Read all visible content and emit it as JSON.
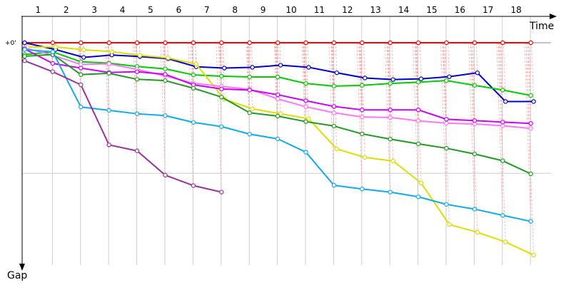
{
  "chart_data": {
    "type": "line",
    "xlabel": "Time",
    "ylabel": "Gap",
    "y_zero_label": "+0'",
    "x_ticks": [
      "1",
      "2",
      "3",
      "4",
      "5",
      "6",
      "7",
      "8",
      "9",
      "10",
      "11",
      "12",
      "13",
      "14",
      "15",
      "16",
      "17",
      "18"
    ],
    "x_range": [
      0.5,
      19.5
    ],
    "y_range": [
      0,
      100
    ],
    "grid": true,
    "y_reference": 50,
    "series": [
      {
        "color": "#ff0000",
        "x": [
          0.5,
          1.5,
          2.5,
          3.5,
          4.5,
          5.5,
          6.5,
          7.5,
          8.5,
          9.5,
          10.5,
          11.5,
          12.5,
          13.5,
          14.5,
          15.5,
          16.5,
          17.5,
          18.5
        ],
        "values": [
          0,
          0,
          0,
          0,
          0,
          0,
          0,
          0,
          0,
          0,
          0,
          0,
          0,
          0,
          0,
          0,
          0,
          0,
          0
        ]
      },
      {
        "color": "#0000cc",
        "x": [
          0.5,
          1.6,
          2.6,
          3.6,
          4.6,
          5.6,
          6.6,
          7.6,
          8.6,
          9.6,
          10.6,
          11.6,
          12.6,
          13.6,
          14.6,
          15.6,
          16.6,
          17.6,
          18.6
        ],
        "values": [
          0,
          2.6,
          5.6,
          4.7,
          5.3,
          6.1,
          9.2,
          9.7,
          9.4,
          8.6,
          9.4,
          11.5,
          13.5,
          14.1,
          13.8,
          13,
          11.5,
          22.5,
          22.5
        ]
      },
      {
        "color": "#00cc00",
        "x": [
          0.5,
          1.5,
          2.5,
          3.5,
          4.5,
          5.5,
          6.5,
          7.5,
          8.5,
          9.5,
          10.5,
          11.5,
          12.5,
          13.5,
          14.5,
          15.5,
          16.5,
          17.5,
          18.5
        ],
        "values": [
          4.5,
          3.5,
          7.3,
          7.8,
          9.1,
          10,
          12.3,
          12.8,
          13.1,
          13.1,
          15.6,
          16.6,
          16.3,
          15.6,
          15.1,
          14.5,
          16.3,
          18.1,
          20.2
        ]
      },
      {
        "color": "#dddd00",
        "x": [
          0.6,
          1.6,
          2.6,
          3.6,
          4.6,
          5.6,
          6.6,
          7.6,
          8.6,
          9.6,
          10.6,
          11.6,
          12.6,
          13.6,
          14.6,
          15.6,
          16.6,
          17.6,
          18.6
        ],
        "values": [
          1.6,
          1.6,
          2.7,
          3.4,
          4.8,
          5.8,
          8.2,
          21.6,
          25.3,
          27.2,
          29.1,
          40.7,
          43.9,
          45.3,
          53.7,
          69.6,
          72.6,
          76.3,
          81.3
        ]
      },
      {
        "color": "#ff77ff",
        "x": [
          0.5,
          1.5,
          2.5,
          3.5,
          4.5,
          5.5,
          6.5,
          7.5,
          8.5,
          9.5,
          10.5,
          11.5,
          12.5,
          13.5,
          14.5,
          15.5,
          16.5,
          17.5,
          18.5
        ],
        "values": [
          2,
          4.8,
          8.3,
          8.1,
          10.2,
          12.7,
          15.5,
          16.7,
          17.8,
          21.5,
          24.5,
          26.8,
          28.4,
          28.6,
          29.9,
          30.8,
          31.1,
          31.8,
          32.8
        ]
      },
      {
        "color": "#cc00ff",
        "x": [
          0.5,
          1.5,
          2.5,
          3.5,
          4.5,
          5.5,
          6.5,
          7.5,
          8.5,
          9.5,
          10.5,
          11.5,
          12.5,
          13.5,
          14.5,
          15.5,
          16.5,
          17.5,
          18.5
        ],
        "values": [
          2.4,
          7.9,
          9.7,
          11.4,
          11.1,
          12.1,
          16.1,
          17.7,
          18.1,
          19.9,
          22.2,
          24.4,
          25.7,
          25.7,
          25.7,
          29.3,
          29.8,
          30.4,
          30.9
        ]
      },
      {
        "color": "#229922",
        "x": [
          0.5,
          1.5,
          2.5,
          3.5,
          4.5,
          5.5,
          6.5,
          7.5,
          8.5,
          9.5,
          10.5,
          11.5,
          12.5,
          13.5,
          14.5,
          15.5,
          16.5,
          17.5,
          18.5
        ],
        "values": [
          5.2,
          4.5,
          12.2,
          11.7,
          14,
          14.5,
          17.4,
          20.8,
          26.8,
          28.1,
          30.2,
          31.9,
          34.9,
          36.9,
          38.7,
          40.4,
          42.6,
          45.2,
          50.2
        ]
      },
      {
        "color": "#11aaee",
        "x": [
          0.5,
          1.5,
          2.5,
          3.5,
          4.5,
          5.5,
          6.5,
          7.5,
          8.5,
          9.5,
          10.5,
          11.5,
          12.5,
          13.5,
          14.5,
          15.5,
          16.5,
          17.5,
          18.5
        ],
        "values": [
          2.6,
          3.5,
          24.6,
          25.9,
          27.2,
          27.9,
          30.5,
          32.1,
          35,
          36.8,
          41.9,
          54.6,
          56,
          57.2,
          59,
          61.9,
          63.7,
          66.1,
          68.4
        ]
      },
      {
        "color": "#993399",
        "x": [
          0.5,
          1.5,
          2.5,
          3.5,
          4.5,
          5.5,
          6.5,
          7.5
        ],
        "values": [
          6.9,
          11.1,
          16.1,
          39.1,
          41.4,
          50.7,
          54.7,
          57.2
        ]
      }
    ]
  }
}
